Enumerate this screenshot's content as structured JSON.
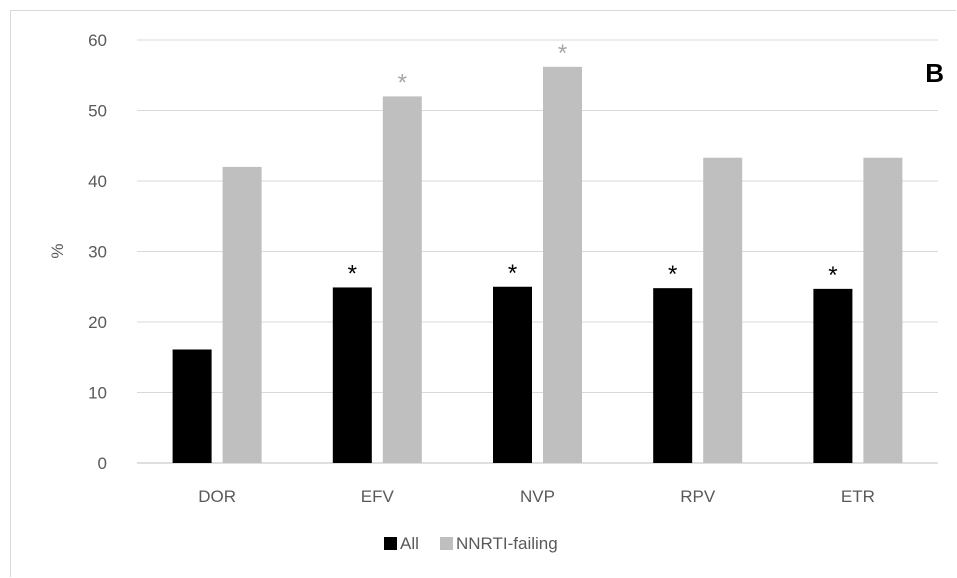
{
  "chart_data": {
    "type": "bar",
    "panel_label": "B",
    "categories": [
      "DOR",
      "EFV",
      "NVP",
      "RPV",
      "ETR"
    ],
    "ylabel": "%",
    "xlabel": "",
    "ylim": [
      0,
      60
    ],
    "yticks": [
      0,
      10,
      20,
      30,
      40,
      50,
      60
    ],
    "grid": true,
    "legend_position": "bottom",
    "series": [
      {
        "name": "All",
        "color": "#000000",
        "values": [
          16.1,
          24.9,
          25.0,
          24.8,
          24.7
        ],
        "significance": [
          "",
          "*",
          "*",
          "*",
          "*"
        ]
      },
      {
        "name": "NNRTI-failing",
        "color": "#bfbfbf",
        "values": [
          42.0,
          52.0,
          56.2,
          43.3,
          43.3
        ],
        "significance": [
          "",
          "*",
          "*",
          "",
          ""
        ]
      }
    ]
  }
}
